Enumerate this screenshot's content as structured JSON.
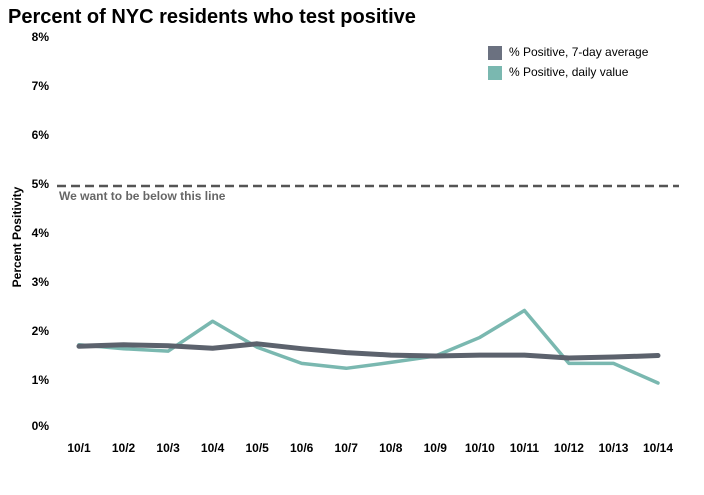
{
  "chart_data": {
    "type": "line",
    "title": "Percent of NYC residents who test positive",
    "xlabel": "",
    "ylabel": "Percent Positivity",
    "categories": [
      "10/1",
      "10/2",
      "10/3",
      "10/4",
      "10/5",
      "10/6",
      "10/7",
      "10/8",
      "10/9",
      "10/10",
      "10/11",
      "10/12",
      "10/13",
      "10/14"
    ],
    "y_ticks": [
      {
        "value": 0,
        "label": "0%"
      },
      {
        "value": 1,
        "label": "1%"
      },
      {
        "value": 2,
        "label": "2%"
      },
      {
        "value": 3,
        "label": "3%"
      },
      {
        "value": 4,
        "label": "4%"
      },
      {
        "value": 5,
        "label": "5%"
      },
      {
        "value": 6,
        "label": "6%"
      },
      {
        "value": 7,
        "label": "7%"
      },
      {
        "value": 8,
        "label": "8%"
      }
    ],
    "ylim": [
      0,
      8
    ],
    "series": [
      {
        "name": "% Positive, daily value",
        "color": "#7ab8b0",
        "values": [
          1.78,
          1.7,
          1.65,
          2.26,
          1.73,
          1.4,
          1.3,
          1.42,
          1.55,
          1.93,
          2.48,
          1.4,
          1.4,
          1.0
        ]
      },
      {
        "name": "% Positive, 7-day average",
        "color": "#5c626d",
        "values": [
          1.75,
          1.78,
          1.76,
          1.71,
          1.8,
          1.7,
          1.62,
          1.57,
          1.55,
          1.57,
          1.57,
          1.51,
          1.53,
          1.56
        ]
      }
    ],
    "legend": [
      {
        "name": "% Positive, 7-day average",
        "color": "#6b7180"
      },
      {
        "name": "% Positive, daily value",
        "color": "#7ab8b0"
      }
    ],
    "legend_position": "top-right",
    "reference_line": {
      "value": 5,
      "label": "We want to be below this line",
      "color": "#555555",
      "style": "dashed"
    },
    "grid": false
  }
}
